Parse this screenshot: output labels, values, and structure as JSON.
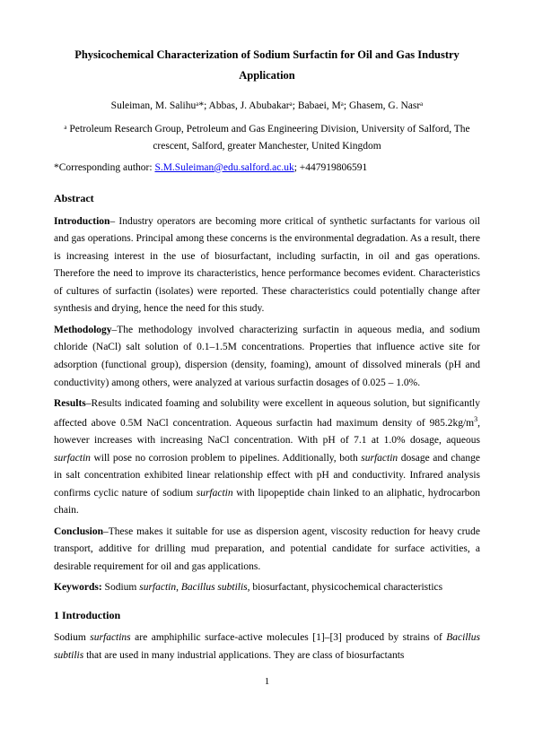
{
  "title": "Physicochemical Characterization of Sodium Surfactin for Oil and Gas Industry Application",
  "authors": "Suleiman, M. Salihuᵃ*; Abbas, J. Abubakarᵃ; Babaei, Mᵃ; Ghasem, G. Nasrᵃ",
  "affiliation": "ᵃ Petroleum Research Group, Petroleum and Gas Engineering Division, University of Salford, The crescent, Salford, greater Manchester, United Kingdom",
  "corresponding_prefix": "*Corresponding author: ",
  "corresponding_email": "S.M.Suleiman@edu.salford.ac.uk",
  "corresponding_suffix": "; +447919806591",
  "abstract_heading": "Abstract",
  "intro_label": "Introduction",
  "intro_text": "– Industry operators are becoming more critical of synthetic surfactants for various oil and gas operations. Principal among these concerns is the environmental degradation. As a result, there is increasing interest in the use of biosurfactant, including surfactin, in oil and gas operations. Therefore the need to improve its characteristics, hence performance becomes evident. Characteristics of cultures of surfactin (isolates) were reported. These characteristics could potentially change after synthesis and drying, hence the need for this study.",
  "method_label": "Methodology",
  "method_text": "–The methodology involved characterizing surfactin in aqueous media, and sodium chloride (NaCl) salt solution of 0.1–1.5M concentrations. Properties that influence active site for adsorption (functional group), dispersion (density, foaming), amount of dissolved minerals (pH and conductivity) among others, were analyzed at various surfactin dosages of 0.025 – 1.0%.",
  "results_label": "Results",
  "results_text_a": "–Results indicated foaming and solubility were excellent in aqueous solution, but significantly affected above 0.5M NaCl concentration. Aqueous surfactin had maximum density of 985.2kg/m",
  "results_sup": "3",
  "results_text_b": ", however increases with increasing NaCl concentration. With pH of 7.1 at 1.0% dosage, aqueous ",
  "results_text_c": " will pose no corrosion problem to pipelines. Additionally, both ",
  "results_text_d": " dosage and change in salt concentration exhibited linear relationship effect with pH and conductivity. Infrared analysis confirms cyclic nature of sodium ",
  "results_text_e": " with lipopeptide chain linked to an aliphatic, hydrocarbon chain.",
  "surfactin_italic": "surfactin",
  "conclusion_label": "Conclusion",
  "conclusion_text": "–These makes it suitable for use as dispersion agent, viscosity reduction for heavy crude transport, additive for drilling mud preparation, and potential candidate for surface activities, a desirable requirement for oil and gas applications.",
  "keywords_label": "Keywords: ",
  "keywords_text_a": "Sodium ",
  "keywords_text_b": ", ",
  "bacillus_italic": "Bacillus subtilis",
  "keywords_text_c": ", biosurfactant, physicochemical characteristics",
  "section1_heading": "1    Introduction",
  "section1_text_a": "Sodium ",
  "surfactins_italic": "surfactins",
  "section1_text_b": " are amphiphilic surface-active molecules [1]–[3] produced by strains of ",
  "section1_text_c": " that are used in many industrial applications. They are class of biosurfactants",
  "page_number": "1"
}
